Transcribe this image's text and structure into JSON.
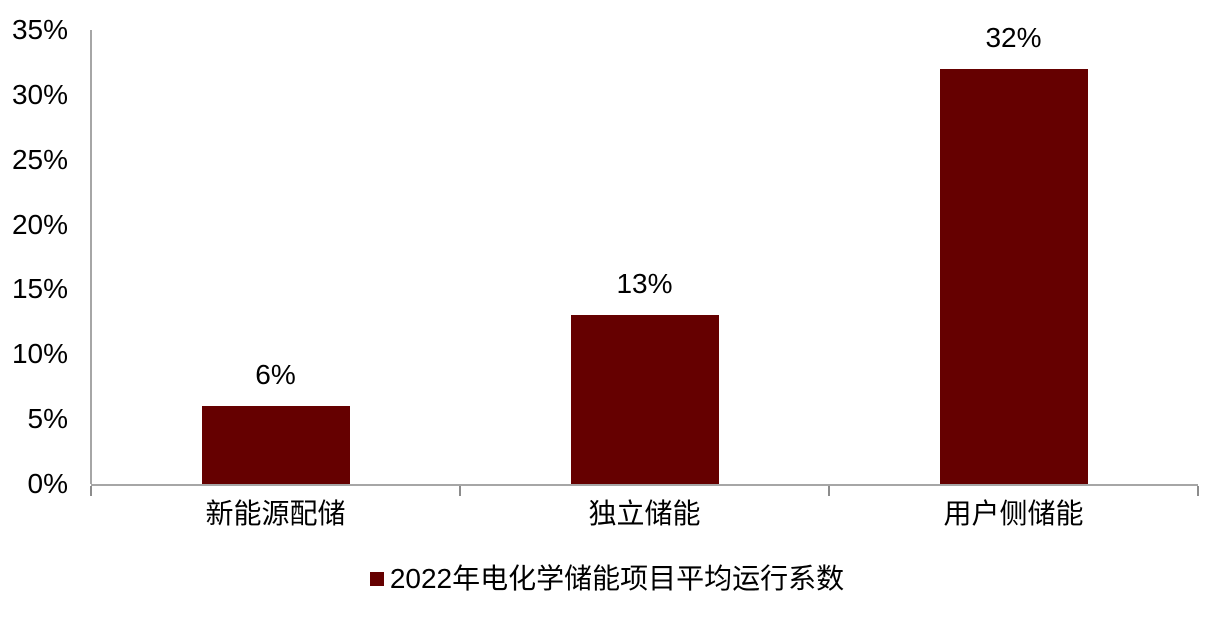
{
  "chart_data": {
    "type": "bar",
    "title": "",
    "categories": [
      "新能源配储",
      "独立储能",
      "用户侧储能"
    ],
    "values": [
      6,
      13,
      32
    ],
    "value_labels": [
      "6%",
      "13%",
      "32%"
    ],
    "series": [
      {
        "name": "2022年电化学储能项目平均运行系数",
        "values": [
          6,
          13,
          32
        ]
      }
    ],
    "xlabel": "",
    "ylabel": "",
    "ylim": [
      0,
      35
    ],
    "ytick_step": 5,
    "ytick_labels": [
      "0%",
      "5%",
      "10%",
      "15%",
      "20%",
      "25%",
      "30%",
      "35%"
    ],
    "grid": false,
    "legend_position": "bottom-center",
    "colors": {
      "bar": "#650000",
      "axis": "#a6a6a6",
      "tick": "#8c8c8c",
      "text": "#000000",
      "background": "#ffffff"
    }
  },
  "legend": {
    "label": "2022年电化学储能项目平均运行系数"
  }
}
